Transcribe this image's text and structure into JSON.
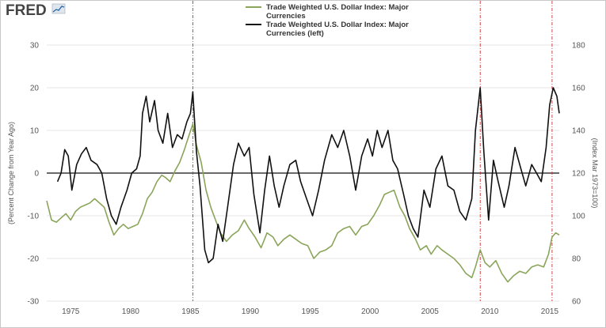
{
  "logo": {
    "text": "FRED"
  },
  "chart_data": {
    "type": "line",
    "title": "",
    "legend": {
      "position": "top-center",
      "entries": [
        {
          "name": "Trade Weighted U.S. Dollar Index: Major Currencies",
          "lines": [
            "Trade Weighted U.S. Dollar Index: Major",
            "Currencies"
          ],
          "color": "#8aa55a"
        },
        {
          "name": "Trade Weighted U.S. Dollar Index: Major Currencies (left)",
          "lines": [
            "Trade Weighted U.S. Dollar Index: Major",
            "Currencies (left)"
          ],
          "color": "#111111"
        }
      ]
    },
    "left_axis": {
      "label": "(Percent Change from Year Ago)",
      "range": [
        -30,
        30
      ],
      "ticks": [
        -30,
        -20,
        -10,
        0,
        10,
        20,
        30
      ]
    },
    "right_axis": {
      "label": "(Index Mar 1973=100)",
      "range": [
        60,
        180
      ],
      "ticks": [
        60,
        80,
        100,
        120,
        140,
        160,
        180
      ]
    },
    "x_axis": {
      "range": [
        1973.0,
        2015.8
      ],
      "ticks": [
        1975,
        1980,
        1985,
        1990,
        1995,
        2000,
        2005,
        2010,
        2015
      ]
    },
    "grid": "horizontal",
    "zero_line": true,
    "reference_lines": [
      {
        "x": 1985.2,
        "color": "#cc3333",
        "style": "dash-dot"
      },
      {
        "x": 2009.2,
        "color": "#cc3333",
        "style": "dash-dot"
      },
      {
        "x": 2015.2,
        "color": "#cc3333",
        "style": "dash-dot"
      }
    ],
    "series": [
      {
        "name": "Trade Weighted U.S. Dollar Index: Major Currencies (left)",
        "axis": "left",
        "unit": "percent change from year ago",
        "color": "#111111",
        "points": [
          [
            1973.9,
            -2
          ],
          [
            1974.2,
            0
          ],
          [
            1974.5,
            5.5
          ],
          [
            1974.8,
            4
          ],
          [
            1975.1,
            -4
          ],
          [
            1975.5,
            2
          ],
          [
            1975.9,
            4.5
          ],
          [
            1976.3,
            6
          ],
          [
            1976.7,
            3
          ],
          [
            1977.2,
            2
          ],
          [
            1977.6,
            0
          ],
          [
            1978.0,
            -6
          ],
          [
            1978.4,
            -10
          ],
          [
            1978.8,
            -12
          ],
          [
            1979.2,
            -8
          ],
          [
            1979.7,
            -4
          ],
          [
            1980.1,
            0
          ],
          [
            1980.5,
            1
          ],
          [
            1980.8,
            4
          ],
          [
            1981.0,
            14
          ],
          [
            1981.3,
            18
          ],
          [
            1981.6,
            12
          ],
          [
            1982.0,
            17
          ],
          [
            1982.3,
            10
          ],
          [
            1982.7,
            7
          ],
          [
            1983.1,
            14
          ],
          [
            1983.5,
            6
          ],
          [
            1983.9,
            9
          ],
          [
            1984.3,
            8
          ],
          [
            1984.7,
            12
          ],
          [
            1985.0,
            14
          ],
          [
            1985.2,
            19
          ],
          [
            1985.5,
            5
          ],
          [
            1985.8,
            -3
          ],
          [
            1986.2,
            -18
          ],
          [
            1986.5,
            -21
          ],
          [
            1986.9,
            -20
          ],
          [
            1987.3,
            -12
          ],
          [
            1987.7,
            -16
          ],
          [
            1988.1,
            -8
          ],
          [
            1988.6,
            2
          ],
          [
            1989.0,
            7
          ],
          [
            1989.5,
            4
          ],
          [
            1989.9,
            6
          ],
          [
            1990.3,
            -5
          ],
          [
            1990.8,
            -14
          ],
          [
            1991.2,
            -4
          ],
          [
            1991.6,
            4
          ],
          [
            1992.0,
            -3
          ],
          [
            1992.4,
            -8
          ],
          [
            1992.8,
            -3
          ],
          [
            1993.3,
            2
          ],
          [
            1993.8,
            3
          ],
          [
            1994.2,
            -2
          ],
          [
            1994.7,
            -6
          ],
          [
            1995.2,
            -10
          ],
          [
            1995.7,
            -4
          ],
          [
            1996.2,
            3
          ],
          [
            1996.8,
            9
          ],
          [
            1997.3,
            6
          ],
          [
            1997.8,
            10
          ],
          [
            1998.3,
            4
          ],
          [
            1998.8,
            -4
          ],
          [
            1999.3,
            4
          ],
          [
            1999.8,
            8
          ],
          [
            2000.2,
            4
          ],
          [
            2000.6,
            10
          ],
          [
            2001.0,
            6
          ],
          [
            2001.5,
            10
          ],
          [
            2001.9,
            3
          ],
          [
            2002.3,
            1
          ],
          [
            2002.8,
            -5
          ],
          [
            2003.2,
            -10
          ],
          [
            2003.6,
            -13
          ],
          [
            2004.0,
            -15
          ],
          [
            2004.5,
            -4
          ],
          [
            2005.0,
            -8
          ],
          [
            2005.5,
            1
          ],
          [
            2006.0,
            4
          ],
          [
            2006.5,
            -3
          ],
          [
            2007.0,
            -4
          ],
          [
            2007.5,
            -9
          ],
          [
            2008.0,
            -11
          ],
          [
            2008.5,
            -6
          ],
          [
            2008.8,
            10
          ],
          [
            2009.2,
            20
          ],
          [
            2009.5,
            5
          ],
          [
            2009.9,
            -11
          ],
          [
            2010.3,
            3
          ],
          [
            2010.7,
            -2
          ],
          [
            2011.2,
            -8
          ],
          [
            2011.6,
            -3
          ],
          [
            2012.1,
            6
          ],
          [
            2012.6,
            1
          ],
          [
            2013.0,
            -3
          ],
          [
            2013.5,
            2
          ],
          [
            2013.9,
            0
          ],
          [
            2014.3,
            -2
          ],
          [
            2014.7,
            6
          ],
          [
            2015.0,
            16
          ],
          [
            2015.3,
            20
          ],
          [
            2015.6,
            18
          ],
          [
            2015.8,
            14
          ]
        ]
      },
      {
        "name": "Trade Weighted U.S. Dollar Index: Major Currencies",
        "axis": "right",
        "unit": "index Mar 1973=100",
        "color": "#8aa55a",
        "points": [
          [
            1973.0,
            107
          ],
          [
            1973.4,
            98
          ],
          [
            1973.8,
            97
          ],
          [
            1974.2,
            99
          ],
          [
            1974.6,
            101
          ],
          [
            1975.0,
            98
          ],
          [
            1975.4,
            102
          ],
          [
            1975.8,
            104
          ],
          [
            1976.2,
            105
          ],
          [
            1976.6,
            106
          ],
          [
            1977.0,
            108
          ],
          [
            1977.4,
            106
          ],
          [
            1977.8,
            104
          ],
          [
            1978.2,
            97
          ],
          [
            1978.6,
            91
          ],
          [
            1979.0,
            94
          ],
          [
            1979.4,
            96
          ],
          [
            1979.8,
            94
          ],
          [
            1980.2,
            95
          ],
          [
            1980.6,
            96
          ],
          [
            1981.0,
            101
          ],
          [
            1981.4,
            108
          ],
          [
            1981.8,
            111
          ],
          [
            1982.2,
            116
          ],
          [
            1982.6,
            119
          ],
          [
            1982.9,
            118
          ],
          [
            1983.3,
            116
          ],
          [
            1983.7,
            121
          ],
          [
            1984.1,
            125
          ],
          [
            1984.5,
            131
          ],
          [
            1984.9,
            138
          ],
          [
            1985.2,
            143
          ],
          [
            1985.5,
            133
          ],
          [
            1985.9,
            125
          ],
          [
            1986.3,
            112
          ],
          [
            1986.7,
            104
          ],
          [
            1987.1,
            98
          ],
          [
            1987.5,
            92
          ],
          [
            1988.0,
            88
          ],
          [
            1988.5,
            91
          ],
          [
            1989.0,
            93
          ],
          [
            1989.5,
            98
          ],
          [
            1989.9,
            94
          ],
          [
            1990.4,
            90
          ],
          [
            1990.9,
            85
          ],
          [
            1991.4,
            92
          ],
          [
            1991.9,
            90
          ],
          [
            1992.3,
            86
          ],
          [
            1992.8,
            89
          ],
          [
            1993.3,
            91
          ],
          [
            1993.8,
            89
          ],
          [
            1994.3,
            87
          ],
          [
            1994.8,
            86
          ],
          [
            1995.3,
            80
          ],
          [
            1995.8,
            83
          ],
          [
            1996.3,
            84
          ],
          [
            1996.8,
            86
          ],
          [
            1997.3,
            92
          ],
          [
            1997.8,
            94
          ],
          [
            1998.3,
            95
          ],
          [
            1998.8,
            91
          ],
          [
            1999.3,
            95
          ],
          [
            1999.8,
            96
          ],
          [
            2000.3,
            100
          ],
          [
            2000.8,
            105
          ],
          [
            2001.2,
            110
          ],
          [
            2001.6,
            111
          ],
          [
            2002.0,
            112
          ],
          [
            2002.5,
            104
          ],
          [
            2002.9,
            100
          ],
          [
            2003.3,
            94
          ],
          [
            2003.8,
            89
          ],
          [
            2004.2,
            84
          ],
          [
            2004.7,
            86
          ],
          [
            2005.1,
            82
          ],
          [
            2005.6,
            86
          ],
          [
            2006.0,
            84
          ],
          [
            2006.5,
            82
          ],
          [
            2007.0,
            80
          ],
          [
            2007.5,
            77
          ],
          [
            2008.0,
            73
          ],
          [
            2008.5,
            71
          ],
          [
            2008.8,
            76
          ],
          [
            2009.2,
            84
          ],
          [
            2009.6,
            78
          ],
          [
            2010.0,
            76
          ],
          [
            2010.5,
            79
          ],
          [
            2011.0,
            73
          ],
          [
            2011.5,
            69
          ],
          [
            2012.0,
            72
          ],
          [
            2012.5,
            74
          ],
          [
            2013.0,
            73
          ],
          [
            2013.5,
            76
          ],
          [
            2014.0,
            77
          ],
          [
            2014.5,
            76
          ],
          [
            2014.9,
            82
          ],
          [
            2015.2,
            90
          ],
          [
            2015.5,
            92
          ],
          [
            2015.8,
            91
          ]
        ]
      }
    ]
  }
}
